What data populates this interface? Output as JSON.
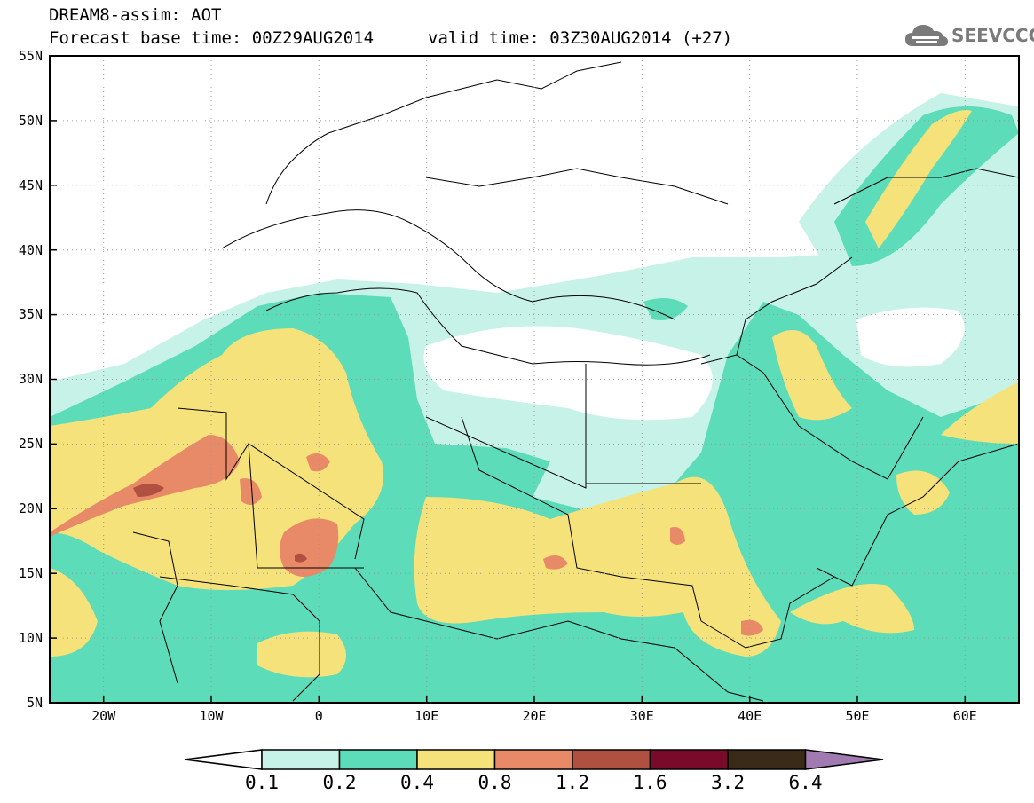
{
  "header": {
    "title": "DREAM8-assim: AOT",
    "base_time": "Forecast base time: 00Z29AUG2014",
    "valid_time": "valid time: 03Z30AUG2014 (+27)"
  },
  "logo": {
    "text": "SEEVCCC",
    "icon": "cloud-logo-icon"
  },
  "map": {
    "variable": "AOT",
    "lon_range": [
      -25,
      65
    ],
    "lat_range": [
      5,
      55
    ],
    "lon_ticks": [
      "20W",
      "10W",
      "0",
      "10E",
      "20E",
      "30E",
      "40E",
      "50E",
      "60E"
    ],
    "lat_ticks": [
      "5N",
      "10N",
      "15N",
      "20N",
      "25N",
      "30N",
      "35N",
      "40N",
      "45N",
      "50N",
      "55N"
    ],
    "grid": "dotted"
  },
  "colorbar": {
    "levels": [
      "0.1",
      "0.2",
      "0.4",
      "0.8",
      "1.2",
      "1.6",
      "3.2",
      "6.4"
    ],
    "colors": [
      "#c7f2e8",
      "#5cdcb8",
      "#f5e27a",
      "#e88a68",
      "#b05040",
      "#7a0a2a",
      "#3a2a18"
    ],
    "under_color": "#ffffff",
    "over_color": "#a07ab0"
  }
}
